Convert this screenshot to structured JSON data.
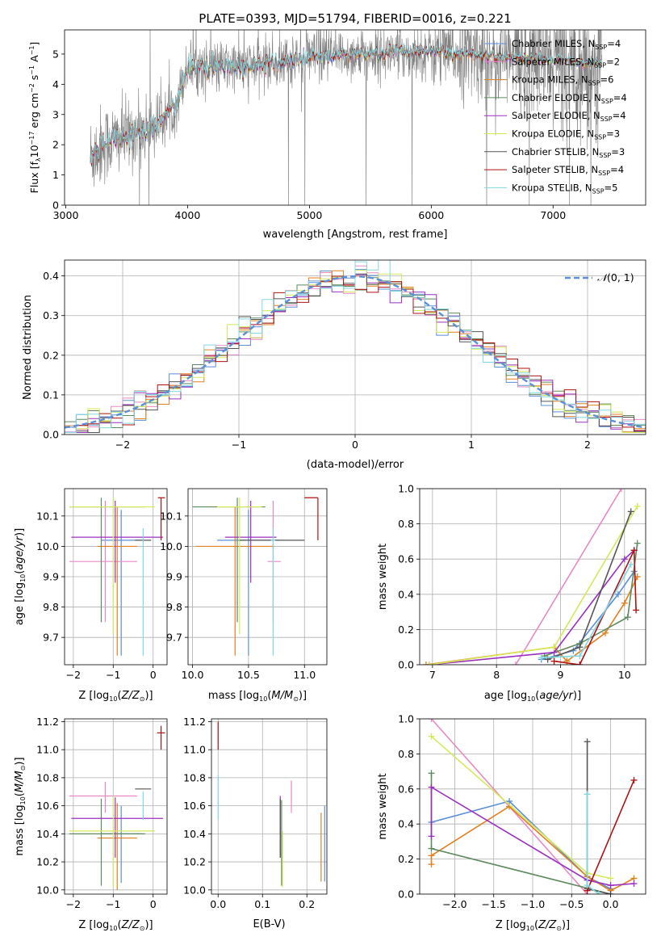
{
  "figure": {
    "title": "PLATE=0393, MJD=51794, FIBERID=0016, z=0.221"
  },
  "colors": {
    "chabrier_miles": "#5b8fd8",
    "salpeter_miles": "#e78ac3",
    "kroupa_miles": "#e08020",
    "chabrier_elodie": "#5e8a5e",
    "salpeter_elodie": "#9b30c0",
    "kroupa_elodie": "#d4e85a",
    "chabrier_stelib": "#555555",
    "salpeter_stelib": "#b01010",
    "kroupa_stelib": "#80d8e0",
    "data": "#808080",
    "gauss": "#5b8fd8"
  },
  "chart_data": [
    {
      "type": "line",
      "id": "spectrum",
      "xlabel": "wavelength [Angstrom, rest frame]",
      "ylabel": "Flux [f$_\\lambda$10$^{-17}$ erg cm$^{-2}$ s$^{-1}$ A$^{-1}$]",
      "xlim": [
        2990,
        7760
      ],
      "ylim": [
        0,
        5.8
      ],
      "xticks": [
        3000,
        4000,
        5000,
        6000,
        7000
      ],
      "yticks": [
        0,
        1,
        2,
        3,
        4,
        5
      ],
      "legend_position": "right",
      "legend": [
        {
          "key": "chabrier_miles",
          "label": "Chabrier MILES, N",
          "sub": "SSP",
          "suffix": "=4"
        },
        {
          "key": "salpeter_miles",
          "label": "Salpeter MILES, N",
          "sub": "SSP",
          "suffix": "=2"
        },
        {
          "key": "kroupa_miles",
          "label": "Kroupa MILES, N",
          "sub": "SSP",
          "suffix": "=6"
        },
        {
          "key": "chabrier_elodie",
          "label": "Chabrier ELODIE, N",
          "sub": "SSP",
          "suffix": "=4"
        },
        {
          "key": "salpeter_elodie",
          "label": "Salpeter ELODIE, N",
          "sub": "SSP",
          "suffix": "=4"
        },
        {
          "key": "kroupa_elodie",
          "label": "Kroupa ELODIE, N",
          "sub": "SSP",
          "suffix": "=3"
        },
        {
          "key": "chabrier_stelib",
          "label": "Chabrier STELIB, N",
          "sub": "SSP",
          "suffix": "=3"
        },
        {
          "key": "salpeter_stelib",
          "label": "Salpeter STELIB, N",
          "sub": "SSP",
          "suffix": "=4"
        },
        {
          "key": "kroupa_stelib",
          "label": "Kroupa STELIB, N",
          "sub": "SSP",
          "suffix": "=5"
        }
      ],
      "continuum": {
        "wavelength": [
          3200,
          3300,
          3500,
          3700,
          3800,
          3900,
          4000,
          4200,
          4500,
          4800,
          5000,
          5200,
          5500,
          5800,
          6000,
          6300,
          6600,
          7000,
          7300,
          7400
        ],
        "flux": [
          1.6,
          2.0,
          2.3,
          2.6,
          2.85,
          3.3,
          4.6,
          4.55,
          4.6,
          4.75,
          4.9,
          4.95,
          5.0,
          5.05,
          5.05,
          5.0,
          4.9,
          4.8,
          4.7,
          4.65
        ]
      }
    },
    {
      "type": "bar",
      "id": "residuals",
      "xlabel": "(data-model)/error",
      "ylabel": "Normed distribution",
      "xlim": [
        -2.5,
        2.5
      ],
      "ylim": [
        0,
        0.44
      ],
      "xticks": [
        -2,
        -1,
        0,
        1,
        2
      ],
      "yticks": [
        0.0,
        0.1,
        0.2,
        0.3,
        0.4
      ],
      "legend_position": "top-right",
      "legend_label": "N(0, 1)",
      "bin_width": 0.1
    },
    {
      "type": "scatter",
      "id": "age-vs-Z",
      "xlabel": "Z [log10(Z/Z⊙)]",
      "ylabel": "age  [log10(age/yr)]",
      "xlim": [
        -2.22,
        0.35
      ],
      "ylim": [
        9.61,
        10.19
      ],
      "xticks": [
        -2,
        -1,
        0
      ],
      "yticks": [
        9.7,
        9.8,
        9.9,
        10.0,
        10.1
      ],
      "points": [
        {
          "key": "chabrier_miles",
          "x": -0.8,
          "xerr": [
            0.5,
            0.5
          ],
          "y": 10.02,
          "yerr": [
            0.38,
            0.1
          ]
        },
        {
          "key": "salpeter_miles",
          "x": -1.2,
          "xerr": [
            0.9,
            0.8
          ],
          "y": 9.95,
          "yerr": [
            0.2,
            0.2
          ]
        },
        {
          "key": "kroupa_miles",
          "x": -0.9,
          "xerr": [
            0.5,
            0.5
          ],
          "y": 10.0,
          "yerr": [
            0.36,
            0.13
          ]
        },
        {
          "key": "chabrier_elodie",
          "x": -1.3,
          "xerr": [
            0.8,
            1.1
          ],
          "y": 10.13,
          "yerr": [
            0.38,
            0.03
          ]
        },
        {
          "key": "salpeter_elodie",
          "x": -0.95,
          "xerr": [
            1.1,
            1.2
          ],
          "y": 10.03,
          "yerr": [
            0.15,
            0.12
          ]
        },
        {
          "key": "kroupa_elodie",
          "x": -1.0,
          "xerr": [
            1.1,
            1.05
          ],
          "y": 10.13,
          "yerr": [
            0.42,
            0.03
          ]
        },
        {
          "key": "chabrier_stelib",
          "x": -0.25,
          "xerr": [
            0.0,
            0.0
          ],
          "y": 10.02,
          "yerr": [
            0.0,
            0.0
          ]
        },
        {
          "key": "salpeter_stelib",
          "x": 0.2,
          "xerr": [
            0.08,
            0.1
          ],
          "y": 10.16,
          "yerr": [
            0.14,
            0.0
          ]
        },
        {
          "key": "kroupa_stelib",
          "x": -0.25,
          "xerr": [
            0.0,
            0.0
          ],
          "y": 10.02,
          "yerr": [
            0.38,
            0.04
          ]
        }
      ]
    },
    {
      "type": "scatter",
      "id": "age-vs-mass",
      "xlabel": "mass [log10(M/M⊙)]",
      "ylabel": "",
      "xlim": [
        9.96,
        11.2
      ],
      "ylim": [
        9.61,
        10.19
      ],
      "xticks": [
        10.0,
        10.5,
        11.0
      ],
      "yticks": [
        9.7,
        9.8,
        9.9,
        10.0,
        10.1
      ],
      "points": [
        {
          "key": "chabrier_miles",
          "x": 10.5,
          "xerr": [
            0.28,
            0.28
          ],
          "y": 10.02,
          "yerr": [
            0.38,
            0.1
          ]
        },
        {
          "key": "salpeter_miles",
          "x": 10.72,
          "xerr": [
            0.05,
            0.07
          ],
          "y": 9.95,
          "yerr": [
            0.2,
            0.2
          ]
        },
        {
          "key": "kroupa_miles",
          "x": 10.38,
          "xerr": [
            0.35,
            0.35
          ],
          "y": 10.0,
          "yerr": [
            0.36,
            0.13
          ]
        },
        {
          "key": "chabrier_elodie",
          "x": 10.4,
          "xerr": [
            0.4,
            0.25
          ],
          "y": 10.13,
          "yerr": [
            0.38,
            0.03
          ]
        },
        {
          "key": "salpeter_elodie",
          "x": 10.52,
          "xerr": [
            0.23,
            0.23
          ],
          "y": 10.03,
          "yerr": [
            0.15,
            0.12
          ]
        },
        {
          "key": "kroupa_elodie",
          "x": 10.42,
          "xerr": [
            0.2,
            0.2
          ],
          "y": 10.13,
          "yerr": [
            0.42,
            0.03
          ]
        },
        {
          "key": "chabrier_stelib",
          "x": 10.72,
          "xerr": [
            0.3,
            0.28
          ],
          "y": 10.02,
          "yerr": [
            0.0,
            0.0
          ]
        },
        {
          "key": "salpeter_stelib",
          "x": 11.12,
          "xerr": [
            0.12,
            0.0
          ],
          "y": 10.16,
          "yerr": [
            0.14,
            0.0
          ]
        },
        {
          "key": "kroupa_stelib",
          "x": 10.72,
          "xerr": [
            0.02,
            0.02
          ],
          "y": 10.02,
          "yerr": [
            0.38,
            0.04
          ]
        }
      ]
    },
    {
      "type": "line",
      "id": "weight-vs-age",
      "xlabel": "age  [log10(age/yr)]",
      "ylabel": "mass weight",
      "xlim": [
        6.8,
        10.33
      ],
      "ylim": [
        0,
        1.0
      ],
      "xticks": [
        7,
        8,
        9,
        10
      ],
      "yticks": [
        0.0,
        0.2,
        0.4,
        0.6,
        0.8,
        1.0
      ],
      "series": [
        {
          "key": "chabrier_miles",
          "x": [
            8.7,
            9.2,
            9.9,
            10.15
          ],
          "y": [
            0.03,
            0.08,
            0.4,
            0.53
          ]
        },
        {
          "key": "salpeter_miles",
          "x": [
            8.3,
            9.95
          ],
          "y": [
            0.0,
            1.0
          ]
        },
        {
          "key": "kroupa_miles",
          "x": [
            6.9,
            8.9,
            9.1,
            9.7,
            10.0,
            10.2
          ],
          "y": [
            0.0,
            0.1,
            0.02,
            0.18,
            0.35,
            0.5
          ]
        },
        {
          "key": "chabrier_elodie",
          "x": [
            8.75,
            9.3,
            10.05,
            10.2
          ],
          "y": [
            0.05,
            0.12,
            0.27,
            0.69
          ]
        },
        {
          "key": "salpeter_elodie",
          "x": [
            6.95,
            8.9,
            10.0,
            10.15
          ],
          "y": [
            0.0,
            0.07,
            0.6,
            0.65
          ]
        },
        {
          "key": "kroupa_elodie",
          "x": [
            6.95,
            8.9,
            10.2
          ],
          "y": [
            0.0,
            0.1,
            0.9
          ]
        },
        {
          "key": "chabrier_stelib",
          "x": [
            8.8,
            9.3,
            10.1
          ],
          "y": [
            0.03,
            0.1,
            0.87
          ]
        },
        {
          "key": "salpeter_stelib",
          "x": [
            8.9,
            9.3,
            10.15,
            10.18
          ],
          "y": [
            0.02,
            0.0,
            0.65,
            0.31
          ]
        },
        {
          "key": "kroupa_stelib",
          "x": [
            8.7,
            9.3,
            10.1
          ],
          "y": [
            0.04,
            0.05,
            0.57
          ]
        }
      ]
    },
    {
      "type": "scatter",
      "id": "mass-vs-Z",
      "xlabel": "Z [log10(Z/Z⊙)]",
      "ylabel": "mass [log10(M/M⊙)]",
      "xlim": [
        -2.22,
        0.35
      ],
      "ylim": [
        9.97,
        11.22
      ],
      "xticks": [
        -2,
        -1,
        0
      ],
      "yticks": [
        10.0,
        10.2,
        10.4,
        10.6,
        10.8,
        11.0,
        11.2
      ],
      "points": [
        {
          "key": "chabrier_miles",
          "x": -0.8,
          "xerr": [
            0.5,
            0.5
          ],
          "y": 10.4,
          "yerr": [
            0.35,
            0.2
          ]
        },
        {
          "key": "salpeter_miles",
          "x": -1.2,
          "xerr": [
            0.9,
            0.8
          ],
          "y": 10.67,
          "yerr": [
            0.12,
            0.1
          ]
        },
        {
          "key": "kroupa_miles",
          "x": -0.9,
          "xerr": [
            0.5,
            0.5
          ],
          "y": 10.37,
          "yerr": [
            0.37,
            0.25
          ]
        },
        {
          "key": "chabrier_elodie",
          "x": -1.3,
          "xerr": [
            0.8,
            1.1
          ],
          "y": 10.4,
          "yerr": [
            0.37,
            0.25
          ]
        },
        {
          "key": "salpeter_elodie",
          "x": -0.95,
          "xerr": [
            1.1,
            1.2
          ],
          "y": 10.51,
          "yerr": [
            0.28,
            0.15
          ]
        },
        {
          "key": "kroupa_elodie",
          "x": -1.0,
          "xerr": [
            1.1,
            1.05
          ],
          "y": 10.42,
          "yerr": [
            0.4,
            0.25
          ]
        },
        {
          "key": "chabrier_stelib",
          "x": -0.25,
          "xerr": [
            0.0,
            0.0
          ],
          "y": 10.72,
          "yerr": [
            0.0,
            0.0
          ]
        },
        {
          "key": "salpeter_stelib",
          "x": 0.2,
          "xerr": [
            0.1,
            0.1
          ],
          "y": 11.12,
          "yerr": [
            0.12,
            0.05
          ]
        },
        {
          "key": "kroupa_stelib",
          "x": -0.25,
          "xerr": [
            0.0,
            0.0
          ],
          "y": 10.6,
          "yerr": [
            0.1,
            0.1
          ]
        }
      ]
    },
    {
      "type": "scatter",
      "id": "mass-vs-ebv",
      "xlabel": "E(B-V)",
      "ylabel": "",
      "xlim": [
        -0.015,
        0.245
      ],
      "ylim": [
        9.97,
        11.22
      ],
      "xticks": [
        0.0,
        0.1,
        0.2
      ],
      "yticks": [
        10.0,
        10.2,
        10.4,
        10.6,
        10.8,
        11.0,
        11.2
      ],
      "points": [
        {
          "key": "chabrier_miles",
          "x": 0.24,
          "xerr": [
            0.0,
            0.0
          ],
          "y": 10.4,
          "yerr": [
            0.34,
            0.2
          ]
        },
        {
          "key": "salpeter_miles",
          "x": 0.165,
          "xerr": [
            0.0,
            0.0
          ],
          "y": 10.67,
          "yerr": [
            0.12,
            0.11
          ]
        },
        {
          "key": "kroupa_miles",
          "x": 0.232,
          "xerr": [
            0.0,
            0.0
          ],
          "y": 10.3,
          "yerr": [
            0.24,
            0.25
          ]
        },
        {
          "key": "chabrier_elodie",
          "x": 0.143,
          "xerr": [
            0.0,
            0.0
          ],
          "y": 10.4,
          "yerr": [
            0.37,
            0.24
          ]
        },
        {
          "key": "salpeter_elodie",
          "x": 0.14,
          "xerr": [
            0.0,
            0.0
          ],
          "y": 10.45,
          "yerr": [
            0.22,
            0.22
          ]
        },
        {
          "key": "kroupa_elodie",
          "x": 0.145,
          "xerr": [
            0.0,
            0.0
          ],
          "y": 10.2,
          "yerr": [
            0.18,
            0.22
          ]
        },
        {
          "key": "chabrier_stelib",
          "x": 0.14,
          "xerr": [
            0.0,
            0.0
          ],
          "y": 10.45,
          "yerr": [
            0.22,
            0.2
          ]
        },
        {
          "key": "salpeter_stelib",
          "x": 0.0,
          "xerr": [
            0.0,
            0.0
          ],
          "y": 11.12,
          "yerr": [
            0.12,
            0.08
          ]
        },
        {
          "key": "kroupa_stelib",
          "x": 0.0,
          "xerr": [
            0.0,
            0.0
          ],
          "y": 10.65,
          "yerr": [
            0.15,
            0.17
          ]
        }
      ]
    },
    {
      "type": "line",
      "id": "weight-vs-Z",
      "xlabel": "Z [log10(Z/Z⊙)]",
      "ylabel": "mass weight",
      "xlim": [
        -2.45,
        0.45
      ],
      "ylim": [
        0,
        1.0
      ],
      "xticks": [
        -2.0,
        -1.5,
        -1.0,
        -0.5,
        0.0
      ],
      "yticks": [
        0.0,
        0.2,
        0.4,
        0.6,
        0.8,
        1.0
      ],
      "series": [
        {
          "key": "chabrier_miles",
          "x": [
            -2.3,
            -1.3,
            -0.3,
            0.0
          ],
          "y": [
            0.41,
            0.53,
            0.1,
            0.03
          ]
        },
        {
          "key": "salpeter_miles",
          "x": [
            -2.3,
            -0.3
          ],
          "y": [
            1.0,
            0.0
          ]
        },
        {
          "key": "kroupa_miles",
          "x": [
            -2.3,
            -2.3,
            -1.3,
            -0.3,
            0.0,
            0.3
          ],
          "y": [
            0.17,
            0.22,
            0.5,
            0.1,
            0.02,
            0.09
          ]
        },
        {
          "key": "chabrier_elodie",
          "x": [
            -2.3,
            -2.3,
            0.0
          ],
          "y": [
            0.69,
            0.26,
            0.0
          ]
        },
        {
          "key": "salpeter_elodie",
          "x": [
            -2.3,
            -2.3,
            -0.3,
            0.0,
            0.3
          ],
          "y": [
            0.33,
            0.61,
            0.08,
            0.05,
            0.06
          ]
        },
        {
          "key": "kroupa_elodie",
          "x": [
            -2.3,
            -0.3,
            0.0
          ],
          "y": [
            0.9,
            0.12,
            0.09
          ]
        },
        {
          "key": "chabrier_stelib",
          "x": [
            -0.3,
            -0.3,
            0.0
          ],
          "y": [
            0.87,
            0.03,
            0.0
          ]
        },
        {
          "key": "salpeter_stelib",
          "x": [
            -0.3,
            0.3
          ],
          "y": [
            0.02,
            0.65
          ]
        },
        {
          "key": "kroupa_stelib",
          "x": [
            -0.3,
            -0.3,
            -0.15
          ],
          "y": [
            0.57,
            0.05,
            0.0
          ]
        }
      ]
    }
  ]
}
